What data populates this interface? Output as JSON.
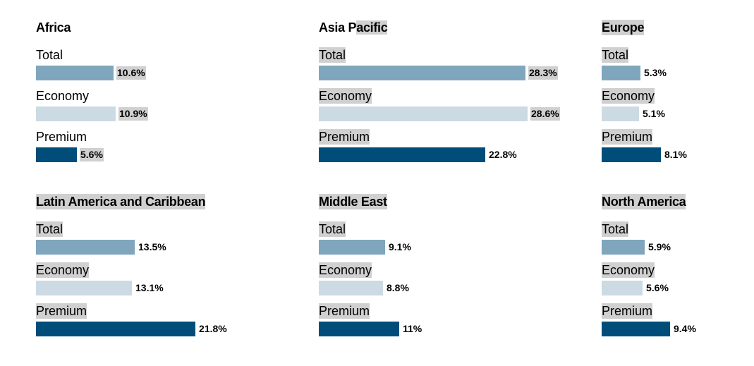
{
  "chart_data": {
    "type": "bar",
    "scale_max": 30.0,
    "colors": {
      "Total": "#7fa6bd",
      "Economy": "#ccdae3",
      "Premium": "#004d7a"
    },
    "panels": [
      {
        "title": "Africa",
        "rows": [
          {
            "label": "Total",
            "value": 10.6,
            "text": "10.6%"
          },
          {
            "label": "Economy",
            "value": 10.9,
            "text": "10.9%"
          },
          {
            "label": "Premium",
            "value": 5.6,
            "text": "5.6%"
          }
        ]
      },
      {
        "title": "Asia Pacific",
        "rows": [
          {
            "label": "Total",
            "value": 28.3,
            "text": "28.3%"
          },
          {
            "label": "Economy",
            "value": 28.6,
            "text": "28.6%"
          },
          {
            "label": "Premium",
            "value": 22.8,
            "text": "22.8%"
          }
        ]
      },
      {
        "title": "Europe",
        "rows": [
          {
            "label": "Total",
            "value": 5.3,
            "text": "5.3%"
          },
          {
            "label": "Economy",
            "value": 5.1,
            "text": "5.1%"
          },
          {
            "label": "Premium",
            "value": 8.1,
            "text": "8.1%"
          }
        ]
      },
      {
        "title": "Latin America and Caribbean",
        "rows": [
          {
            "label": "Total",
            "value": 13.5,
            "text": "13.5%"
          },
          {
            "label": "Economy",
            "value": 13.1,
            "text": "13.1%"
          },
          {
            "label": "Premium",
            "value": 21.8,
            "text": "21.8%"
          }
        ]
      },
      {
        "title": "Middle East",
        "rows": [
          {
            "label": "Total",
            "value": 9.1,
            "text": "9.1%"
          },
          {
            "label": "Economy",
            "value": 8.8,
            "text": "8.8%"
          },
          {
            "label": "Premium",
            "value": 11,
            "text": "11%"
          }
        ]
      },
      {
        "title": "North America",
        "rows": [
          {
            "label": "Total",
            "value": 5.9,
            "text": "5.9%"
          },
          {
            "label": "Economy",
            "value": 5.6,
            "text": "5.6%"
          },
          {
            "label": "Premium",
            "value": 9.4,
            "text": "9.4%"
          }
        ]
      }
    ]
  }
}
